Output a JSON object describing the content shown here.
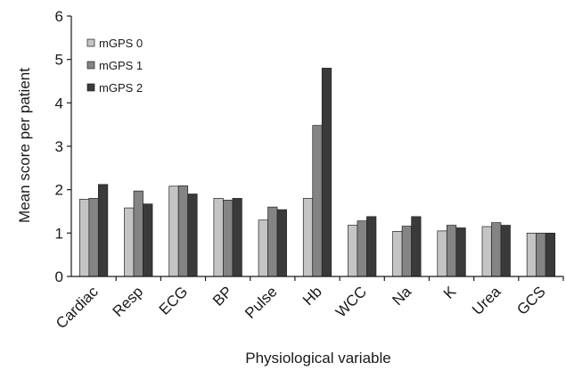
{
  "chart_data": {
    "type": "bar",
    "title": "",
    "xlabel": "Physiological variable",
    "ylabel": "Mean score per patient",
    "ylim": [
      0,
      6
    ],
    "yticks": [
      0,
      1,
      2,
      3,
      4,
      5,
      6
    ],
    "grid": false,
    "legend_position": "top-left",
    "categories": [
      "Cardiac",
      "Resp",
      "ECG",
      "BP",
      "Pulse",
      "Hb",
      "WCC",
      "Na",
      "K",
      "Urea",
      "GCS"
    ],
    "series": [
      {
        "name": "mGPS 0",
        "color": "#c4c4c4",
        "values": [
          1.78,
          1.58,
          2.08,
          1.8,
          1.3,
          1.8,
          1.18,
          1.04,
          1.05,
          1.15,
          1.0
        ]
      },
      {
        "name": "mGPS 1",
        "color": "#848484",
        "values": [
          1.8,
          1.97,
          2.09,
          1.76,
          1.6,
          3.48,
          1.28,
          1.16,
          1.18,
          1.24,
          1.0
        ]
      },
      {
        "name": "mGPS 2",
        "color": "#3a3a3a",
        "values": [
          2.12,
          1.67,
          1.9,
          1.8,
          1.54,
          4.8,
          1.38,
          1.38,
          1.12,
          1.18,
          1.0
        ]
      }
    ]
  }
}
